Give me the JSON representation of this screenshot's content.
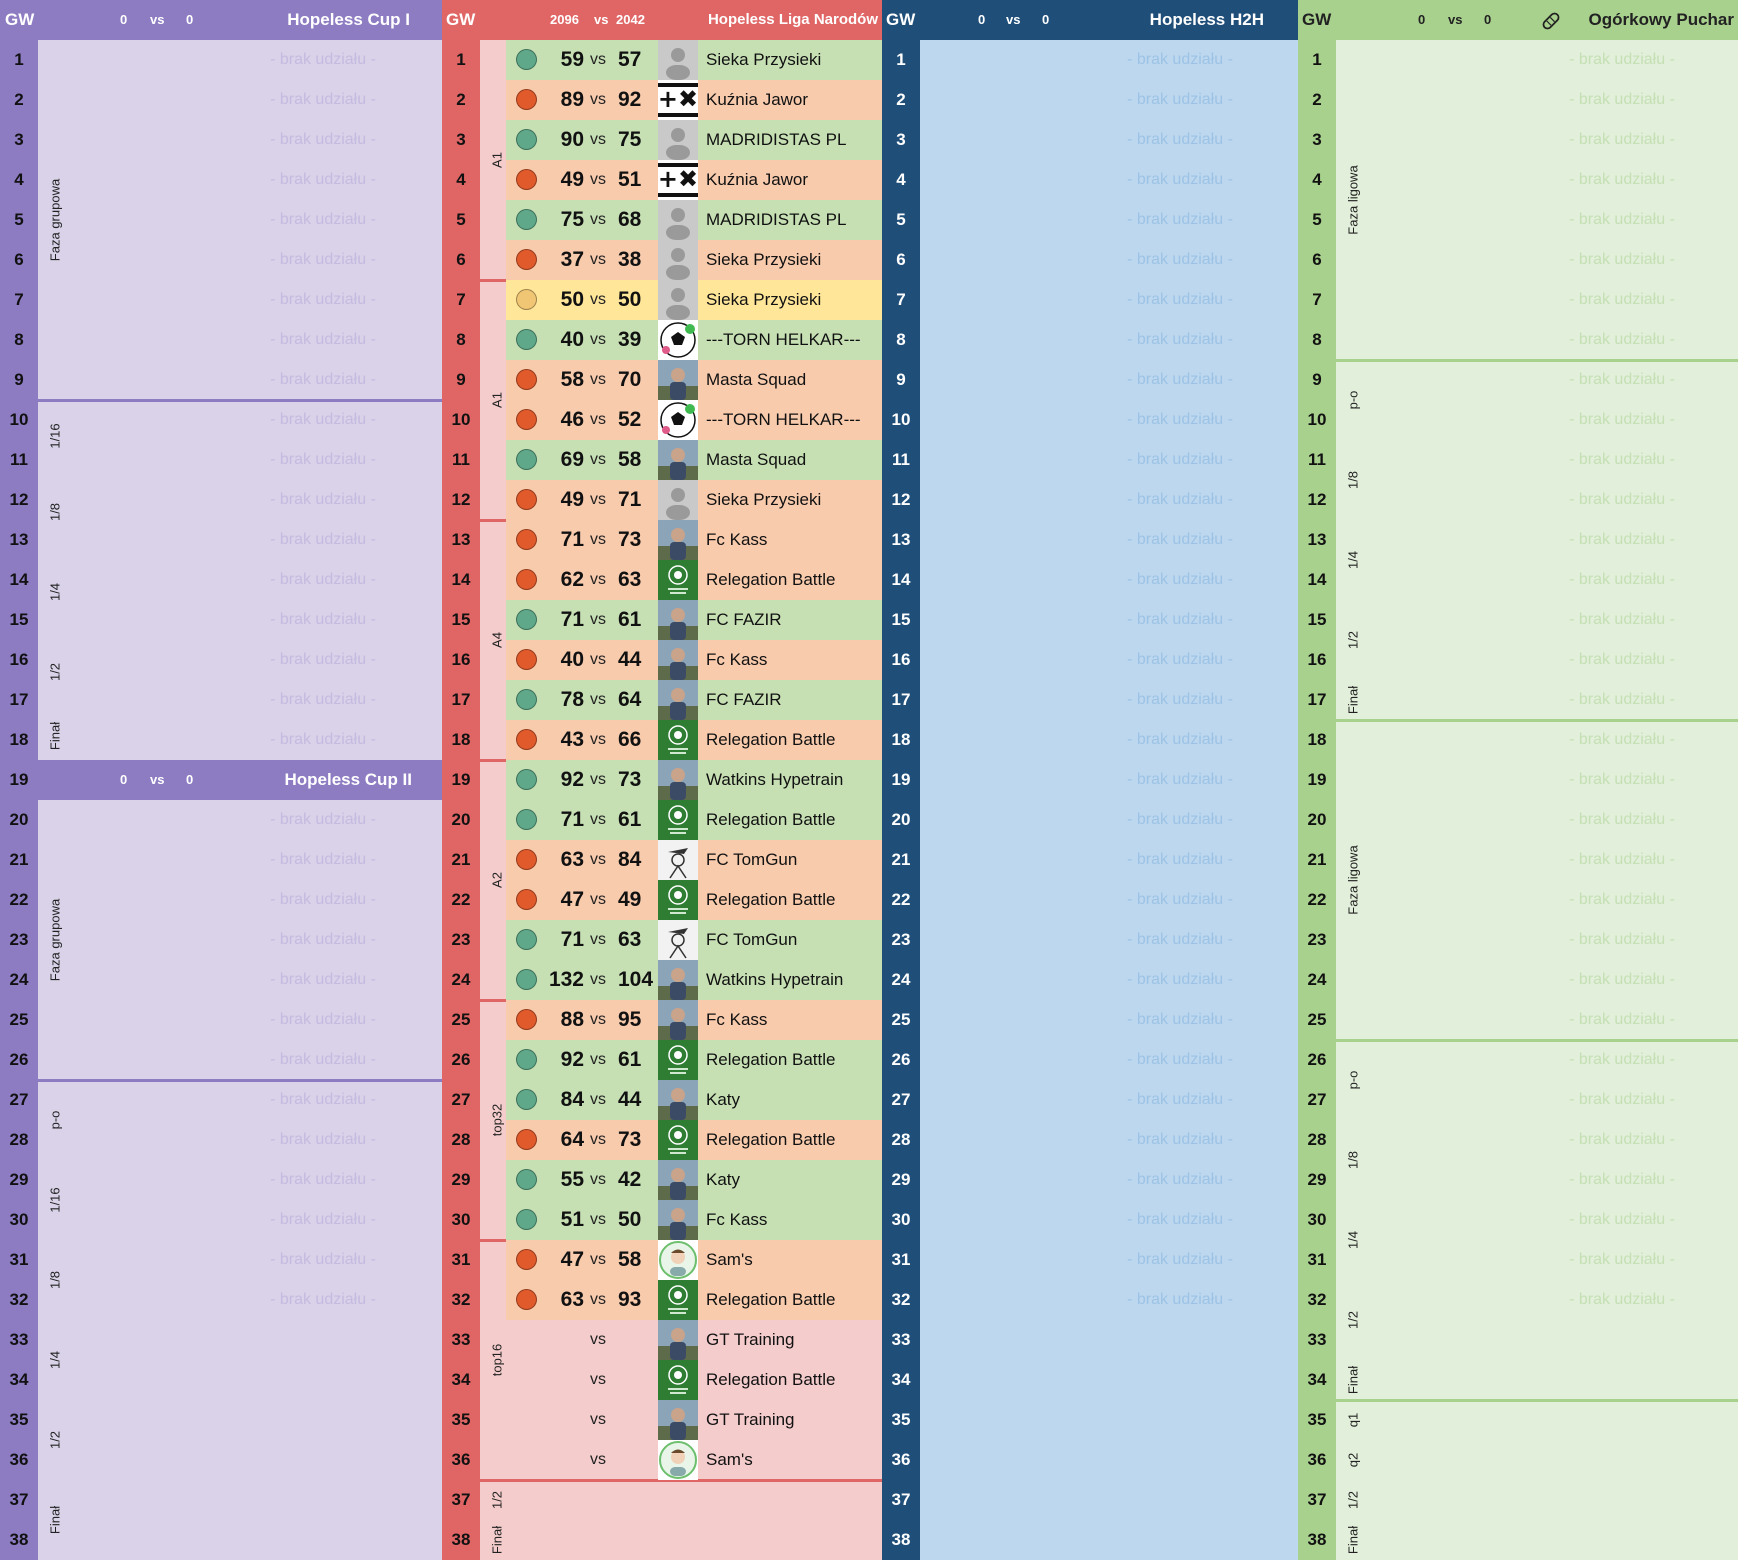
{
  "gw_label": "GW",
  "vs_label": "vs",
  "brak": "- brak udziału -",
  "gameweeks": [
    "1",
    "2",
    "3",
    "4",
    "5",
    "6",
    "7",
    "8",
    "9",
    "10",
    "11",
    "12",
    "13",
    "14",
    "15",
    "16",
    "17",
    "18",
    "19",
    "20",
    "21",
    "22",
    "23",
    "24",
    "25",
    "26",
    "27",
    "28",
    "29",
    "30",
    "31",
    "32",
    "33",
    "34",
    "35",
    "36",
    "37",
    "38"
  ],
  "cup1": {
    "title": "Hopeless Cup I",
    "score_a": "0",
    "score_b": "0",
    "phases": [
      "Faza grupowa",
      "1/16",
      "1/8",
      "1/4",
      "1/2",
      "Finał"
    ]
  },
  "cup2": {
    "title": "Hopeless Cup II",
    "score_a": "0",
    "score_b": "0",
    "phases": [
      "Faza grupowa",
      "p-o",
      "1/16",
      "1/8",
      "1/4",
      "1/2",
      "Finał"
    ]
  },
  "liga": {
    "title": "Hopeless Liga Narodów",
    "score_a": "2096",
    "score_b": "2042",
    "groups": [
      "A1",
      "A1",
      "A4",
      "A2",
      "top32",
      "top16",
      "1/2",
      "Finał"
    ],
    "matches": [
      {
        "gw": "1",
        "a": "59",
        "b": "57",
        "team": "Sieka Przysieki",
        "result": "win",
        "avatar": "default"
      },
      {
        "gw": "2",
        "a": "89",
        "b": "92",
        "team": "Kuźnia Jawor",
        "result": "loss",
        "avatar": "cross"
      },
      {
        "gw": "3",
        "a": "90",
        "b": "75",
        "team": "MADRIDISTAS PL",
        "result": "win",
        "avatar": "default"
      },
      {
        "gw": "4",
        "a": "49",
        "b": "51",
        "team": "Kuźnia Jawor",
        "result": "loss",
        "avatar": "cross"
      },
      {
        "gw": "5",
        "a": "75",
        "b": "68",
        "team": "MADRIDISTAS PL",
        "result": "win",
        "avatar": "default"
      },
      {
        "gw": "6",
        "a": "37",
        "b": "38",
        "team": "Sieka Przysieki",
        "result": "loss",
        "avatar": "default"
      },
      {
        "gw": "7",
        "a": "50",
        "b": "50",
        "team": "Sieka Przysieki",
        "result": "draw",
        "avatar": "default"
      },
      {
        "gw": "8",
        "a": "40",
        "b": "39",
        "team": "---TORN HELKAR---",
        "result": "win",
        "avatar": "ball"
      },
      {
        "gw": "9",
        "a": "58",
        "b": "70",
        "team": "Masta Squad",
        "result": "loss",
        "avatar": "photo"
      },
      {
        "gw": "10",
        "a": "46",
        "b": "52",
        "team": "---TORN HELKAR---",
        "result": "loss",
        "avatar": "ball"
      },
      {
        "gw": "11",
        "a": "69",
        "b": "58",
        "team": "Masta Squad",
        "result": "win",
        "avatar": "photo"
      },
      {
        "gw": "12",
        "a": "49",
        "b": "71",
        "team": "Sieka Przysieki",
        "result": "loss",
        "avatar": "default"
      },
      {
        "gw": "13",
        "a": "71",
        "b": "73",
        "team": "Fc Kass",
        "result": "loss",
        "avatar": "photo"
      },
      {
        "gw": "14",
        "a": "62",
        "b": "63",
        "team": "Relegation Battle",
        "result": "loss",
        "avatar": "green"
      },
      {
        "gw": "15",
        "a": "71",
        "b": "61",
        "team": "FC FAZIR",
        "result": "win",
        "avatar": "photo"
      },
      {
        "gw": "16",
        "a": "40",
        "b": "44",
        "team": "Fc Kass",
        "result": "loss",
        "avatar": "photo"
      },
      {
        "gw": "17",
        "a": "78",
        "b": "64",
        "team": "FC FAZIR",
        "result": "win",
        "avatar": "photo"
      },
      {
        "gw": "18",
        "a": "43",
        "b": "66",
        "team": "Relegation Battle",
        "result": "loss",
        "avatar": "green"
      },
      {
        "gw": "19",
        "a": "92",
        "b": "73",
        "team": "Watkins Hypetrain",
        "result": "win",
        "avatar": "photo"
      },
      {
        "gw": "20",
        "a": "71",
        "b": "61",
        "team": "Relegation Battle",
        "result": "win",
        "avatar": "green"
      },
      {
        "gw": "21",
        "a": "63",
        "b": "84",
        "team": "FC TomGun",
        "result": "loss",
        "avatar": "sketch"
      },
      {
        "gw": "22",
        "a": "47",
        "b": "49",
        "team": "Relegation Battle",
        "result": "loss",
        "avatar": "green"
      },
      {
        "gw": "23",
        "a": "71",
        "b": "63",
        "team": "FC TomGun",
        "result": "win",
        "avatar": "sketch"
      },
      {
        "gw": "24",
        "a": "132",
        "b": "104",
        "team": "Watkins Hypetrain",
        "result": "win",
        "avatar": "photo"
      },
      {
        "gw": "25",
        "a": "88",
        "b": "95",
        "team": "Fc Kass",
        "result": "loss",
        "avatar": "photo"
      },
      {
        "gw": "26",
        "a": "92",
        "b": "61",
        "team": "Relegation Battle",
        "result": "win",
        "avatar": "green"
      },
      {
        "gw": "27",
        "a": "84",
        "b": "44",
        "team": "Katy",
        "result": "win",
        "avatar": "photo"
      },
      {
        "gw": "28",
        "a": "64",
        "b": "73",
        "team": "Relegation Battle",
        "result": "loss",
        "avatar": "green"
      },
      {
        "gw": "29",
        "a": "55",
        "b": "42",
        "team": "Katy",
        "result": "win",
        "avatar": "photo"
      },
      {
        "gw": "30",
        "a": "51",
        "b": "50",
        "team": "Fc Kass",
        "result": "win",
        "avatar": "photo"
      },
      {
        "gw": "31",
        "a": "47",
        "b": "58",
        "team": "Sam's",
        "result": "loss",
        "avatar": "face"
      },
      {
        "gw": "32",
        "a": "63",
        "b": "93",
        "team": "Relegation Battle",
        "result": "loss",
        "avatar": "green"
      },
      {
        "gw": "33",
        "a": "",
        "b": "",
        "team": "GT Training",
        "result": "none",
        "avatar": "photo"
      },
      {
        "gw": "34",
        "a": "",
        "b": "",
        "team": "Relegation Battle",
        "result": "none",
        "avatar": "green"
      },
      {
        "gw": "35",
        "a": "",
        "b": "",
        "team": "GT Training",
        "result": "none",
        "avatar": "photo"
      },
      {
        "gw": "36",
        "a": "",
        "b": "",
        "team": "Sam's",
        "result": "none",
        "avatar": "face"
      }
    ]
  },
  "h2h": {
    "title": "Hopeless H2H",
    "score_a": "0",
    "score_b": "0"
  },
  "ogorek": {
    "title": "Ogórkowy Puchar",
    "icon": "pickle-icon",
    "score_a": "0",
    "score_b": "0",
    "phases": [
      "Faza ligowa",
      "p-o",
      "1/8",
      "1/4",
      "1/2",
      "Finał",
      "Faza ligowa",
      "p-o",
      "1/8",
      "1/4",
      "1/2",
      "Finał",
      "q1",
      "q2",
      "1/2",
      "Finał"
    ]
  },
  "colors": {
    "cup_header": "#8e7cc3",
    "cup_bg": "#d9d2e9",
    "liga_header": "#e06666",
    "liga_bg": "#f4cccc",
    "h2h_header": "#1f4e79",
    "h2h_bg": "#bdd7ee",
    "og_header": "#a9d18e",
    "og_bg": "#e2efda",
    "win_row": "#c6e0b4",
    "loss_row": "#f8cbad",
    "draw_row": "#ffe699",
    "win_dot": "#5fa98a",
    "loss_dot": "#e05a2b",
    "draw_dot": "#f0c674"
  }
}
